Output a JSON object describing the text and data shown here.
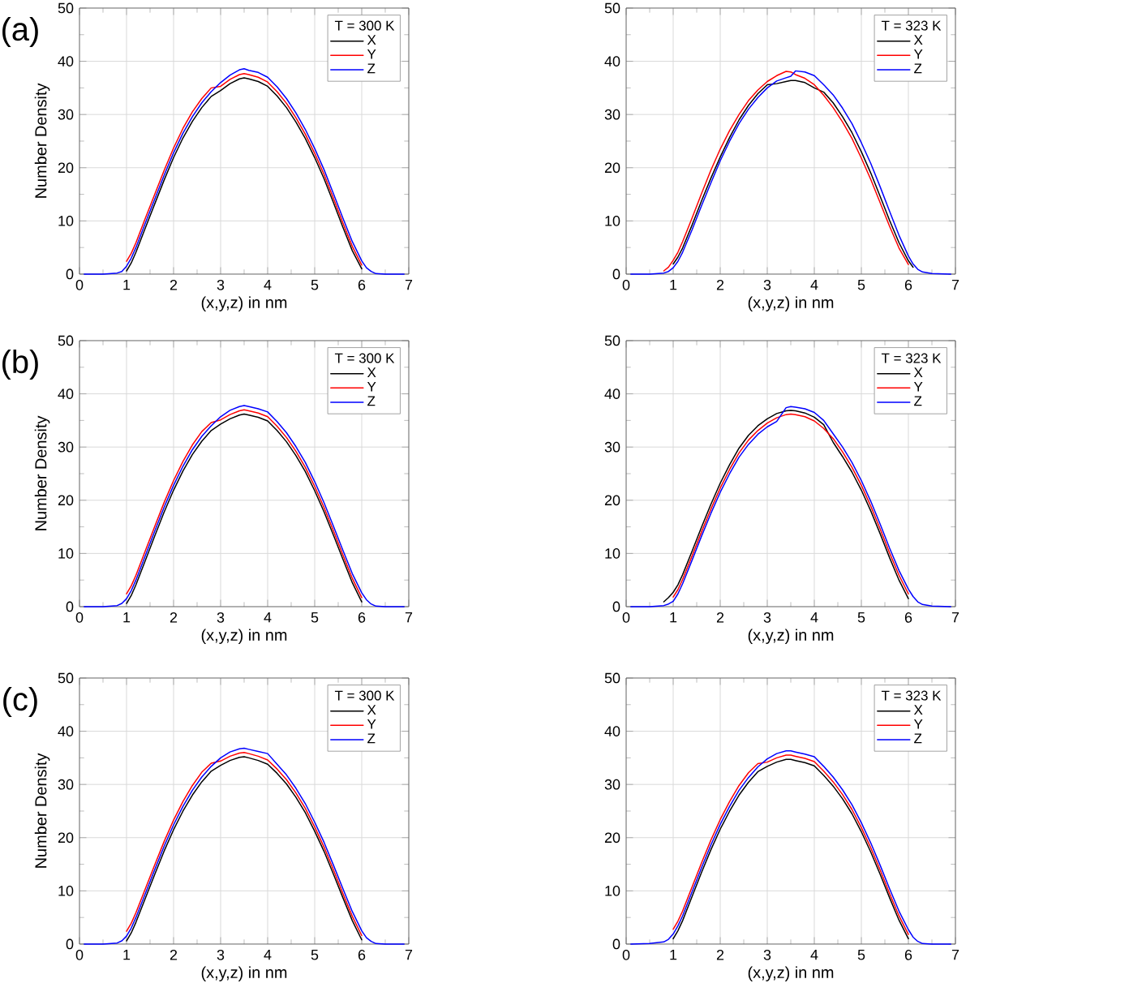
{
  "chart_data": [
    {
      "type": "line",
      "xlabel": "(x,y,z) in nm",
      "ylabel": "Number Density",
      "legend_title": "T = 300 K",
      "annotations": [
        "(a)"
      ],
      "x": [
        0.1,
        0.5,
        0.8,
        0.9,
        1.0,
        1.1,
        1.2,
        1.4,
        1.6,
        1.8,
        2.0,
        2.2,
        2.4,
        2.6,
        2.8,
        3.0,
        3.2,
        3.4,
        3.5,
        3.6,
        3.8,
        4.0,
        4.2,
        4.4,
        4.6,
        4.8,
        5.0,
        5.2,
        5.4,
        5.6,
        5.8,
        6.0,
        6.1,
        6.2,
        6.3,
        6.5,
        6.9
      ],
      "xlim": [
        0,
        7
      ],
      "ylim": [
        0,
        50
      ],
      "xticks": [
        0,
        1,
        2,
        3,
        4,
        5,
        6,
        7
      ],
      "yticks": [
        0,
        10,
        20,
        30,
        40,
        50
      ],
      "grid": true,
      "legend": "top right",
      "series": [
        {
          "name": "X",
          "color": "#000000",
          "values": [
            null,
            null,
            null,
            null,
            0.6,
            2.1,
            4.1,
            8.7,
            13.2,
            17.7,
            21.9,
            25.6,
            28.7,
            31.3,
            33.4,
            34.5,
            35.8,
            36.7,
            36.9,
            36.7,
            36.2,
            35.3,
            33.5,
            31.3,
            28.6,
            25.5,
            21.9,
            17.9,
            13.4,
            8.8,
            4.4,
            1.0,
            null,
            null,
            null,
            null,
            null
          ]
        },
        {
          "name": "Y",
          "color": "#ff0000",
          "values": [
            null,
            null,
            null,
            null,
            2.4,
            3.9,
            5.9,
            10.5,
            15.0,
            19.5,
            23.7,
            27.4,
            30.5,
            33.0,
            35.0,
            35.3,
            36.6,
            37.5,
            37.7,
            37.5,
            37.0,
            36.1,
            34.3,
            32.1,
            29.4,
            26.3,
            22.7,
            18.7,
            14.2,
            9.6,
            5.2,
            1.7,
            null,
            null,
            null,
            null,
            null
          ]
        },
        {
          "name": "Z",
          "color": "#0000ff",
          "values": [
            0,
            0,
            0.2,
            0.5,
            1.5,
            3.0,
            5.0,
            9.6,
            14.1,
            18.6,
            22.8,
            26.5,
            29.6,
            32.2,
            34.3,
            36.0,
            37.4,
            38.4,
            38.6,
            38.3,
            37.9,
            37.0,
            35.2,
            33.0,
            30.3,
            27.2,
            23.6,
            19.6,
            15.1,
            10.5,
            6.1,
            2.5,
            1.2,
            0.5,
            0.1,
            0,
            0
          ]
        }
      ]
    },
    {
      "type": "line",
      "xlabel": "(x,y,z) in nm",
      "legend_title": "T = 323 K",
      "x": [
        0.1,
        0.5,
        0.8,
        0.9,
        1.0,
        1.1,
        1.2,
        1.4,
        1.6,
        1.8,
        2.0,
        2.2,
        2.4,
        2.6,
        2.8,
        3.0,
        3.2,
        3.4,
        3.5,
        3.6,
        3.8,
        4.0,
        4.2,
        4.4,
        4.6,
        4.8,
        5.0,
        5.2,
        5.4,
        5.6,
        5.8,
        6.0,
        6.1,
        6.2,
        6.3,
        6.5,
        6.9
      ],
      "xlim": [
        0,
        7
      ],
      "ylim": [
        0,
        50
      ],
      "xticks": [
        0,
        1,
        2,
        3,
        4,
        5,
        6,
        7
      ],
      "yticks": [
        0,
        10,
        20,
        30,
        40,
        50
      ],
      "grid": true,
      "legend": "top right",
      "series": [
        {
          "name": "X",
          "color": "#000000",
          "values": [
            null,
            null,
            null,
            null,
            1.9,
            3.2,
            4.9,
            9.2,
            13.7,
            18.0,
            22.0,
            25.7,
            29.0,
            31.7,
            33.9,
            35.6,
            35.8,
            36.2,
            36.4,
            36.4,
            36.0,
            35.0,
            34.2,
            32.2,
            29.6,
            26.6,
            23.0,
            19.0,
            14.6,
            10.1,
            5.9,
            2.5,
            1.3,
            null,
            null,
            null,
            null
          ]
        },
        {
          "name": "Y",
          "color": "#ff0000",
          "values": [
            null,
            null,
            0.6,
            1.3,
            2.6,
            4.1,
            6.1,
            10.5,
            15.1,
            19.5,
            23.5,
            27.0,
            30.0,
            32.6,
            34.6,
            36.2,
            37.3,
            38.1,
            38.0,
            37.5,
            36.8,
            35.6,
            33.6,
            31.3,
            28.6,
            25.5,
            21.8,
            17.8,
            13.4,
            9.0,
            4.9,
            1.8,
            null,
            null,
            null,
            null,
            null
          ]
        },
        {
          "name": "Z",
          "color": "#0000ff",
          "values": [
            0,
            0,
            0.2,
            0.5,
            1.2,
            2.4,
            4.1,
            8.3,
            12.8,
            17.1,
            21.3,
            25.0,
            28.3,
            31.0,
            33.2,
            35.0,
            36.3,
            36.9,
            37.2,
            38.2,
            38.0,
            37.3,
            35.6,
            33.7,
            31.2,
            28.3,
            24.7,
            20.8,
            16.4,
            11.8,
            7.3,
            3.4,
            1.9,
            0.9,
            0.4,
            0.1,
            0
          ]
        }
      ]
    },
    {
      "type": "line",
      "xlabel": "(x,y,z) in nm",
      "ylabel": "Number Density",
      "legend_title": "T = 300 K",
      "annotations": [
        "(b)"
      ],
      "x": [
        0.1,
        0.5,
        0.8,
        0.9,
        1.0,
        1.1,
        1.2,
        1.4,
        1.6,
        1.8,
        2.0,
        2.2,
        2.4,
        2.6,
        2.8,
        3.0,
        3.2,
        3.4,
        3.5,
        3.6,
        3.8,
        4.0,
        4.2,
        4.4,
        4.6,
        4.8,
        5.0,
        5.2,
        5.4,
        5.6,
        5.8,
        6.0,
        6.1,
        6.2,
        6.3,
        6.5,
        6.9
      ],
      "xlim": [
        0,
        7
      ],
      "ylim": [
        0,
        50
      ],
      "xticks": [
        0,
        1,
        2,
        3,
        4,
        5,
        6,
        7
      ],
      "yticks": [
        0,
        10,
        20,
        30,
        40,
        50
      ],
      "grid": true,
      "legend": "top right",
      "series": [
        {
          "name": "X",
          "color": "#000000",
          "values": [
            null,
            null,
            null,
            null,
            0.6,
            2.1,
            4.1,
            8.7,
            13.3,
            17.8,
            21.9,
            25.5,
            28.6,
            31.1,
            33.1,
            34.3,
            35.3,
            36.0,
            36.2,
            36.0,
            35.6,
            34.9,
            33.1,
            31.0,
            28.4,
            25.4,
            21.8,
            17.8,
            13.4,
            8.9,
            4.5,
            0.9,
            null,
            null,
            null,
            null,
            null
          ]
        },
        {
          "name": "Y",
          "color": "#ff0000",
          "values": [
            null,
            null,
            null,
            null,
            2.4,
            3.9,
            5.9,
            10.5,
            15.1,
            19.6,
            23.7,
            27.3,
            30.4,
            32.9,
            34.6,
            35.1,
            36.1,
            36.8,
            37.0,
            36.8,
            36.4,
            35.7,
            33.9,
            31.8,
            29.2,
            26.2,
            22.6,
            18.6,
            14.2,
            9.7,
            5.3,
            1.7,
            null,
            null,
            null,
            null,
            null
          ]
        },
        {
          "name": "Z",
          "color": "#0000ff",
          "values": [
            0,
            0,
            0.2,
            0.6,
            1.5,
            3.0,
            5.0,
            9.6,
            14.2,
            18.7,
            22.8,
            26.4,
            29.5,
            32.0,
            34.0,
            35.7,
            36.9,
            37.6,
            37.8,
            37.6,
            37.2,
            36.6,
            34.8,
            32.7,
            30.1,
            27.1,
            23.5,
            19.5,
            15.1,
            10.6,
            6.2,
            2.6,
            1.3,
            0.5,
            0.1,
            0,
            0
          ]
        }
      ]
    },
    {
      "type": "line",
      "xlabel": "(x,y,z) in nm",
      "legend_title": "T = 323 K",
      "x": [
        0.1,
        0.5,
        0.8,
        0.9,
        1.0,
        1.1,
        1.2,
        1.4,
        1.6,
        1.8,
        2.0,
        2.2,
        2.4,
        2.6,
        2.8,
        3.0,
        3.2,
        3.4,
        3.5,
        3.6,
        3.8,
        4.0,
        4.2,
        4.4,
        4.6,
        4.8,
        5.0,
        5.2,
        5.4,
        5.6,
        5.8,
        6.0,
        6.1,
        6.2,
        6.3,
        6.5,
        6.9
      ],
      "xlim": [
        0,
        7
      ],
      "ylim": [
        0,
        50
      ],
      "xticks": [
        0,
        1,
        2,
        3,
        4,
        5,
        6,
        7
      ],
      "yticks": [
        0,
        10,
        20,
        30,
        40,
        50
      ],
      "grid": true,
      "legend": "top right",
      "series": [
        {
          "name": "X",
          "color": "#000000",
          "values": [
            null,
            null,
            0.9,
            1.7,
            2.7,
            4.1,
            6.0,
            10.4,
            14.9,
            19.2,
            23.2,
            26.7,
            29.8,
            32.2,
            34.0,
            35.3,
            36.3,
            36.8,
            36.9,
            36.8,
            36.4,
            35.6,
            34.2,
            30.9,
            28.2,
            25.3,
            21.9,
            18.0,
            13.7,
            9.2,
            5.0,
            1.5,
            null,
            null,
            null,
            null,
            null
          ]
        },
        {
          "name": "Y",
          "color": "#ff0000",
          "values": [
            null,
            null,
            null,
            null,
            1.8,
            3.2,
            5.1,
            9.5,
            14.0,
            18.3,
            22.3,
            25.8,
            28.9,
            31.3,
            33.1,
            34.5,
            35.5,
            36.1,
            36.2,
            36.1,
            35.7,
            34.9,
            33.5,
            31.6,
            29.1,
            26.2,
            22.8,
            18.9,
            14.6,
            10.1,
            5.9,
            2.4,
            null,
            null,
            null,
            null,
            null
          ]
        },
        {
          "name": "Z",
          "color": "#0000ff",
          "values": [
            0,
            0,
            0.2,
            0.5,
            1.0,
            2.4,
            4.3,
            8.7,
            13.2,
            17.5,
            21.5,
            25.0,
            28.1,
            30.5,
            32.4,
            33.8,
            34.8,
            37.4,
            37.6,
            37.5,
            37.2,
            36.5,
            35.0,
            32.5,
            30.0,
            27.1,
            23.7,
            19.8,
            15.5,
            11.0,
            6.8,
            3.3,
            1.9,
            0.9,
            0.4,
            0.1,
            0
          ]
        }
      ]
    },
    {
      "type": "line",
      "xlabel": "(x,y,z) in nm",
      "ylabel": "Number Density",
      "legend_title": "T = 300 K",
      "annotations": [
        "(c)"
      ],
      "x": [
        0.1,
        0.5,
        0.8,
        0.9,
        1.0,
        1.1,
        1.2,
        1.4,
        1.6,
        1.8,
        2.0,
        2.2,
        2.4,
        2.6,
        2.8,
        3.0,
        3.2,
        3.4,
        3.5,
        3.6,
        3.8,
        4.0,
        4.2,
        4.4,
        4.6,
        4.8,
        5.0,
        5.2,
        5.4,
        5.6,
        5.8,
        6.0,
        6.1,
        6.2,
        6.3,
        6.5,
        6.9
      ],
      "xlim": [
        0,
        7
      ],
      "ylim": [
        0,
        50
      ],
      "xticks": [
        0,
        1,
        2,
        3,
        4,
        5,
        6,
        7
      ],
      "yticks": [
        0,
        10,
        20,
        30,
        40,
        50
      ],
      "grid": true,
      "legend": "top right",
      "series": [
        {
          "name": "X",
          "color": "#000000",
          "values": [
            null,
            null,
            null,
            null,
            0.6,
            2.1,
            4.1,
            8.6,
            13.1,
            17.5,
            21.5,
            25.0,
            28.0,
            30.5,
            32.5,
            33.6,
            34.5,
            35.1,
            35.2,
            35.0,
            34.5,
            33.8,
            32.1,
            30.1,
            27.6,
            24.7,
            21.2,
            17.4,
            13.1,
            8.7,
            4.4,
            0.8,
            null,
            null,
            null,
            null,
            null
          ]
        },
        {
          "name": "Y",
          "color": "#ff0000",
          "values": [
            null,
            null,
            null,
            null,
            2.4,
            3.9,
            5.9,
            10.4,
            14.9,
            19.3,
            23.3,
            26.8,
            29.8,
            32.3,
            34.0,
            34.4,
            35.3,
            35.9,
            36.0,
            35.8,
            35.3,
            34.6,
            32.9,
            30.9,
            28.4,
            25.5,
            22.0,
            18.2,
            13.9,
            9.5,
            5.2,
            1.6,
            null,
            null,
            null,
            null,
            null
          ]
        },
        {
          "name": "Z",
          "color": "#0000ff",
          "values": [
            0,
            0,
            0.2,
            0.6,
            1.5,
            3.0,
            5.0,
            9.5,
            14.0,
            18.4,
            22.4,
            25.9,
            28.9,
            31.4,
            33.4,
            35.0,
            36.1,
            36.7,
            36.8,
            36.6,
            36.2,
            35.8,
            33.8,
            31.8,
            29.3,
            26.4,
            22.9,
            19.1,
            14.8,
            10.4,
            6.1,
            2.5,
            1.2,
            0.5,
            0.1,
            0,
            0
          ]
        }
      ]
    },
    {
      "type": "line",
      "xlabel": "(x,y,z) in nm",
      "legend_title": "T = 323 K",
      "x": [
        0.1,
        0.5,
        0.8,
        0.9,
        1.0,
        1.1,
        1.2,
        1.4,
        1.6,
        1.8,
        2.0,
        2.2,
        2.4,
        2.6,
        2.8,
        3.0,
        3.2,
        3.4,
        3.5,
        3.6,
        3.8,
        4.0,
        4.2,
        4.4,
        4.6,
        4.8,
        5.0,
        5.2,
        5.4,
        5.6,
        5.8,
        6.0,
        6.1,
        6.2,
        6.3,
        6.5,
        6.9
      ],
      "xlim": [
        0,
        7
      ],
      "ylim": [
        0,
        50
      ],
      "xticks": [
        0,
        1,
        2,
        3,
        4,
        5,
        6,
        7
      ],
      "yticks": [
        0,
        10,
        20,
        30,
        40,
        50
      ],
      "grid": true,
      "legend": "top right",
      "series": [
        {
          "name": "X",
          "color": "#000000",
          "values": [
            null,
            null,
            null,
            null,
            1.0,
            2.5,
            4.4,
            8.9,
            13.4,
            17.7,
            21.6,
            25.0,
            28.0,
            30.4,
            32.4,
            33.4,
            34.2,
            34.7,
            34.7,
            34.5,
            34.1,
            33.5,
            31.7,
            29.7,
            27.3,
            24.5,
            21.1,
            17.3,
            13.1,
            8.7,
            4.5,
            1.0,
            null,
            null,
            null,
            null,
            null
          ]
        },
        {
          "name": "Y",
          "color": "#ff0000",
          "values": [
            null,
            null,
            null,
            null,
            2.8,
            4.3,
            6.2,
            10.7,
            15.2,
            19.5,
            23.4,
            26.8,
            29.8,
            32.2,
            33.9,
            34.2,
            35.0,
            35.5,
            35.5,
            35.3,
            34.9,
            34.3,
            32.5,
            30.5,
            28.1,
            25.3,
            21.9,
            18.1,
            13.9,
            9.5,
            5.3,
            1.8,
            null,
            null,
            null,
            null,
            null
          ]
        },
        {
          "name": "Z",
          "color": "#0000ff",
          "values": [
            0,
            0.1,
            0.4,
            0.9,
            1.9,
            3.4,
            5.3,
            9.8,
            14.3,
            18.6,
            22.5,
            25.9,
            28.9,
            31.3,
            33.3,
            34.8,
            35.8,
            36.3,
            36.3,
            36.1,
            35.7,
            35.2,
            33.4,
            31.4,
            29.0,
            26.2,
            22.8,
            19.0,
            14.8,
            10.4,
            6.2,
            2.7,
            1.3,
            0.5,
            0.1,
            0,
            0
          ]
        }
      ]
    }
  ]
}
